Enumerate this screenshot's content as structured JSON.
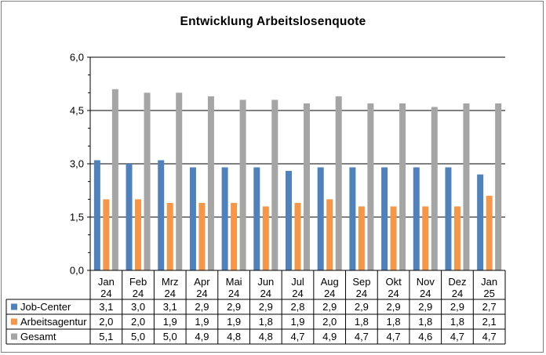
{
  "chart_data": {
    "type": "bar",
    "title": "Entwicklung  Arbeitslosenquote",
    "categories": [
      [
        "Jan",
        "24"
      ],
      [
        "Feb",
        "24"
      ],
      [
        "Mrz",
        "24"
      ],
      [
        "Apr",
        "24"
      ],
      [
        "Mai",
        "24"
      ],
      [
        "Jun",
        "24"
      ],
      [
        "Jul",
        "24"
      ],
      [
        "Aug",
        "24"
      ],
      [
        "Sep",
        "24"
      ],
      [
        "Okt",
        "24"
      ],
      [
        "Nov",
        "24"
      ],
      [
        "Dez",
        "24"
      ],
      [
        "Jan",
        "25"
      ]
    ],
    "series": [
      {
        "name": "Job-Center",
        "color": "#4f81bd",
        "values": [
          3.1,
          3.0,
          3.1,
          2.9,
          2.9,
          2.9,
          2.8,
          2.9,
          2.9,
          2.9,
          2.9,
          2.9,
          2.7
        ],
        "labels": [
          "3,1",
          "3,0",
          "3,1",
          "2,9",
          "2,9",
          "2,9",
          "2,8",
          "2,9",
          "2,9",
          "2,9",
          "2,9",
          "2,9",
          "2,7"
        ]
      },
      {
        "name": "Arbeitsagentur",
        "color": "#f79646",
        "values": [
          2.0,
          2.0,
          1.9,
          1.9,
          1.9,
          1.8,
          1.9,
          2.0,
          1.8,
          1.8,
          1.8,
          1.8,
          2.1
        ],
        "labels": [
          "2,0",
          "2,0",
          "1,9",
          "1,9",
          "1,9",
          "1,8",
          "1,9",
          "2,0",
          "1,8",
          "1,8",
          "1,8",
          "1,8",
          "2,1"
        ]
      },
      {
        "name": "Gesamt",
        "color": "#a5a5a5",
        "values": [
          5.1,
          5.0,
          5.0,
          4.9,
          4.8,
          4.8,
          4.7,
          4.9,
          4.7,
          4.7,
          4.6,
          4.7,
          4.7
        ],
        "labels": [
          "5,1",
          "5,0",
          "5,0",
          "4,9",
          "4,8",
          "4,8",
          "4,7",
          "4,9",
          "4,7",
          "4,7",
          "4,6",
          "4,7",
          "4,7"
        ]
      }
    ],
    "ylim": [
      0,
      6
    ],
    "yticks": [
      0,
      1.5,
      3,
      4.5,
      6
    ],
    "ytick_labels": [
      "0,0",
      "1,5",
      "3,0",
      "4,5",
      "6,0"
    ],
    "grid": true,
    "legend": "data-table-below"
  }
}
